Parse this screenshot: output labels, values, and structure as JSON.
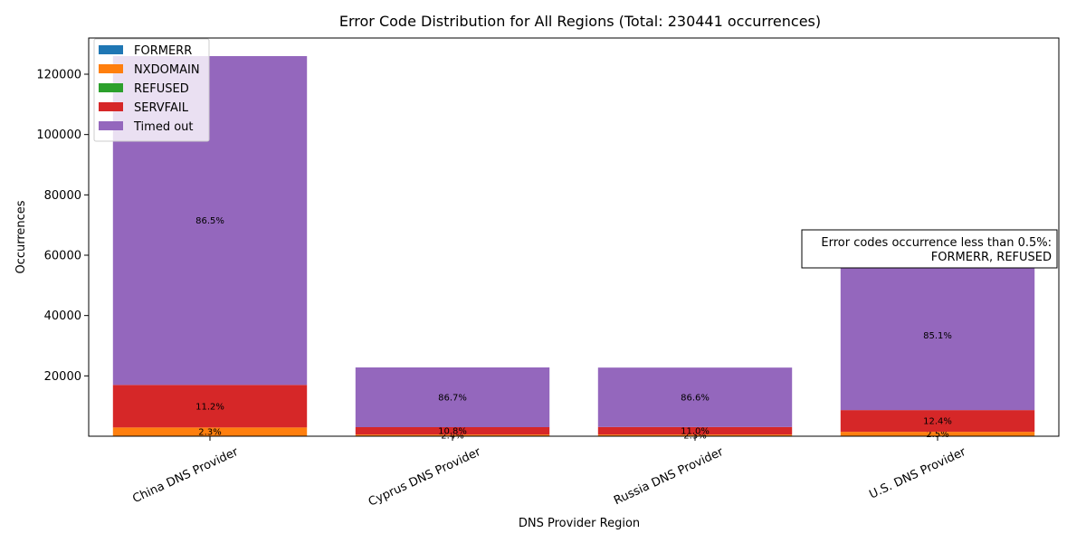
{
  "chart_data": {
    "type": "bar",
    "stacked": true,
    "title": "Error Code Distribution for All Regions (Total: 230441 occurrences)",
    "xlabel": "DNS Provider Region",
    "ylabel": "Occurrences",
    "ylim": [
      0,
      132000
    ],
    "yticks": [
      20000,
      40000,
      60000,
      80000,
      100000,
      120000
    ],
    "grid": false,
    "legend_position": "top-left",
    "categories": [
      "China DNS Provider",
      "Cyprus DNS Provider",
      "Russia DNS Provider",
      "U.S. DNS Provider"
    ],
    "series": [
      {
        "name": "FORMERR",
        "color": "#1f77b4",
        "values": [
          0,
          0,
          0,
          0
        ],
        "labels": [
          "",
          "",
          "",
          ""
        ]
      },
      {
        "name": "NXDOMAIN",
        "color": "#ff7f0e",
        "values": [
          2900,
          550,
          550,
          1460
        ],
        "labels": [
          "2.3%",
          "2.4%",
          "2.3%",
          "2.5%"
        ]
      },
      {
        "name": "REFUSED",
        "color": "#2ca02c",
        "values": [
          0,
          0,
          0,
          0
        ],
        "labels": [
          "",
          "",
          "",
          ""
        ]
      },
      {
        "name": "SERVFAIL",
        "color": "#d62728",
        "values": [
          14100,
          2450,
          2500,
          7200
        ],
        "labels": [
          "11.2%",
          "10.8%",
          "11.0%",
          "12.4%"
        ]
      },
      {
        "name": "Timed out",
        "color": "#9467bd",
        "values": [
          109000,
          19800,
          19700,
          49600
        ],
        "labels": [
          "86.5%",
          "86.7%",
          "86.6%",
          "85.1%"
        ]
      }
    ],
    "note": {
      "line1": "Error codes occurrence less than 0.5%:",
      "line2": "FORMERR, REFUSED"
    }
  }
}
